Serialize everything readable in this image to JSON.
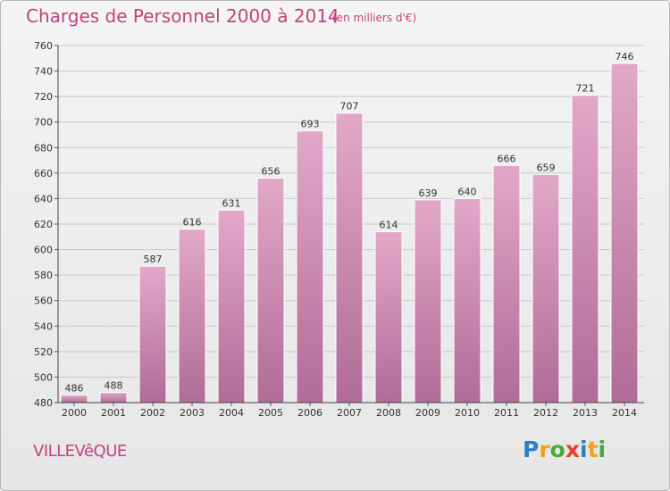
{
  "title": "Charges de Personnel 2000 à 2014",
  "unit_note": "(en milliers d'€)",
  "commune": "VILLEVêQUE",
  "logo": {
    "letters": [
      "P",
      "r",
      "o",
      "x",
      "i",
      "t",
      "i"
    ],
    "colors": [
      "#2e7fc2",
      "#f0a020",
      "#4aa83a",
      "#e8402a",
      "#2e7fc2",
      "#f0a020",
      "#4aa83a"
    ]
  },
  "colors": {
    "accent": "#c5417d",
    "bar_top": "#e3a8c8",
    "bar_bottom": "#b06c97",
    "grid": "#c8c8c8"
  },
  "chart_data": {
    "type": "bar",
    "title": "Charges de Personnel 2000 à 2014",
    "categories": [
      "2000",
      "2001",
      "2002",
      "2003",
      "2004",
      "2005",
      "2006",
      "2007",
      "2008",
      "2009",
      "2010",
      "2011",
      "2012",
      "2013",
      "2014"
    ],
    "values": [
      486,
      488,
      587,
      616,
      631,
      656,
      693,
      707,
      614,
      639,
      640,
      666,
      659,
      721,
      746
    ],
    "ylim": [
      480,
      760
    ],
    "yticks": [
      480,
      500,
      520,
      540,
      560,
      580,
      600,
      620,
      640,
      660,
      680,
      700,
      720,
      740,
      760
    ],
    "grid": true,
    "xlabel": "",
    "ylabel": ""
  }
}
